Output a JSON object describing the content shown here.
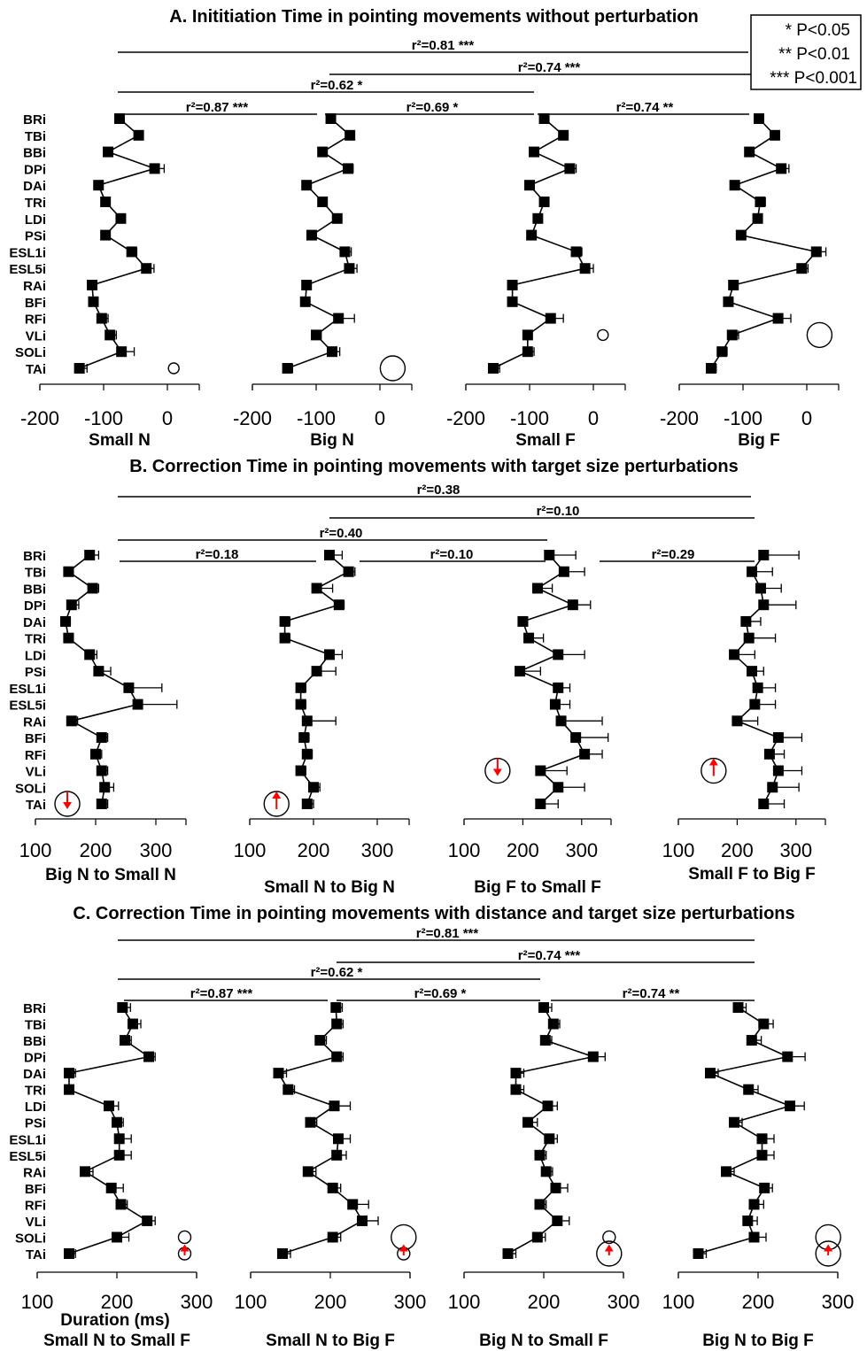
{
  "muscles": [
    "BRi",
    "TBi",
    "BBi",
    "DPi",
    "DAi",
    "TRi",
    "LDi",
    "PSi",
    "ESL1i",
    "ESL5i",
    "RAi",
    "BFi",
    "RFi",
    "VLi",
    "SOLi",
    "TAi"
  ],
  "legend": {
    "p05": "* P<0.05",
    "p01": "** P<0.01",
    "p001": "*** P<0.001"
  },
  "xaxis_label": "Duration (ms)",
  "chart_data": [
    {
      "type": "line",
      "title": "A. Inititiation Time in pointing movements without perturbation",
      "xlim": [
        -200,
        50
      ],
      "xticks": [
        -200,
        -100,
        0
      ],
      "panels": [
        {
          "name": "Small N",
          "values": [
            -75,
            -45,
            -93,
            -20,
            -108,
            -97,
            -73,
            -97,
            -56,
            -33,
            -118,
            -116,
            -103,
            -90,
            -72,
            -138
          ],
          "err": [
            5,
            4,
            4,
            15,
            6,
            5,
            6,
            4,
            8,
            12,
            7,
            5,
            10,
            10,
            20,
            12
          ],
          "circles": [
            {
              "muscle": "TAi",
              "value": 10,
              "r": 6
            }
          ],
          "arrows": []
        },
        {
          "name": "Big N",
          "values": [
            -77,
            -47,
            -90,
            -50,
            -115,
            -90,
            -67,
            -107,
            -55,
            -48,
            -115,
            -117,
            -65,
            -100,
            -75,
            -145
          ],
          "err": [
            5,
            4,
            5,
            8,
            6,
            6,
            7,
            5,
            10,
            12,
            6,
            5,
            25,
            8,
            12,
            8
          ],
          "circles": [
            {
              "muscle": "TAi",
              "value": 20,
              "r": 14
            }
          ],
          "arrows": []
        },
        {
          "name": "Small F",
          "values": [
            -77,
            -47,
            -93,
            -37,
            -100,
            -77,
            -87,
            -97,
            -27,
            -13,
            -127,
            -127,
            -67,
            -103,
            -103,
            -157
          ],
          "err": [
            5,
            4,
            4,
            10,
            5,
            7,
            6,
            4,
            9,
            13,
            5,
            4,
            20,
            6,
            10,
            10
          ],
          "circles": [
            {
              "muscle": "VLi",
              "value": 15,
              "r": 6
            }
          ],
          "arrows": []
        },
        {
          "name": "Big F",
          "values": [
            -75,
            -50,
            -90,
            -40,
            -113,
            -73,
            -77,
            -103,
            15,
            -8,
            -115,
            -123,
            -45,
            -117,
            -133,
            -150
          ],
          "err": [
            6,
            4,
            5,
            12,
            6,
            8,
            5,
            4,
            15,
            10,
            6,
            5,
            20,
            10,
            8,
            8
          ],
          "circles": [
            {
              "muscle": "VLi",
              "value": 20,
              "r": 14
            }
          ],
          "arrows": []
        }
      ],
      "brackets": [
        {
          "label": "r²=0.81 ***"
        },
        {
          "label": "r²=0.74 ***"
        },
        {
          "label": "r²=0.62 *"
        },
        {
          "label": "r²=0.87 ***"
        },
        {
          "label": "r²=0.69 *"
        },
        {
          "label": "r²=0.74 **"
        }
      ]
    },
    {
      "type": "line",
      "title": "B. Correction Time in pointing movements with target size perturbations",
      "xlim": [
        100,
        350
      ],
      "xticks": [
        100,
        200,
        300
      ],
      "panels": [
        {
          "name": "Big N to Small N",
          "values": [
            190,
            155,
            195,
            160,
            150,
            155,
            190,
            205,
            255,
            270,
            160,
            210,
            200,
            210,
            215,
            210
          ],
          "err": [
            15,
            8,
            10,
            12,
            8,
            8,
            12,
            20,
            55,
            65,
            10,
            10,
            10,
            10,
            15,
            10
          ],
          "circles": [
            {
              "muscle": "TAi",
              "value": 153,
              "r": 14
            }
          ],
          "arrows": [
            {
              "muscle": "TAi",
              "dir": "down"
            }
          ]
        },
        {
          "name": "Small N to Big N",
          "values": [
            225,
            255,
            205,
            240,
            155,
            155,
            225,
            205,
            180,
            180,
            190,
            185,
            190,
            180,
            200,
            190
          ],
          "err": [
            20,
            10,
            25,
            8,
            8,
            8,
            20,
            30,
            8,
            8,
            45,
            8,
            8,
            8,
            10,
            10
          ],
          "circles": [
            {
              "muscle": "TAi",
              "value": 142,
              "r": 14
            }
          ],
          "arrows": [
            {
              "muscle": "TAi",
              "dir": "up"
            }
          ]
        },
        {
          "name": "Big F to Small F",
          "values": [
            245,
            270,
            225,
            285,
            200,
            210,
            260,
            195,
            260,
            255,
            265,
            290,
            305,
            230,
            260,
            230
          ],
          "err": [
            45,
            35,
            25,
            30,
            8,
            25,
            45,
            35,
            20,
            25,
            70,
            55,
            30,
            45,
            45,
            30
          ],
          "circles": [
            {
              "muscle": "VLi",
              "value": 157,
              "r": 14
            }
          ],
          "arrows": [
            {
              "muscle": "VLi",
              "dir": "down"
            }
          ]
        },
        {
          "name": "Small F to Big F",
          "values": [
            245,
            225,
            240,
            245,
            215,
            220,
            195,
            225,
            235,
            230,
            200,
            270,
            255,
            270,
            260,
            245
          ],
          "err": [
            60,
            35,
            35,
            55,
            25,
            45,
            35,
            20,
            30,
            35,
            35,
            40,
            25,
            40,
            45,
            35
          ],
          "circles": [
            {
              "muscle": "VLi",
              "value": 160,
              "r": 14
            }
          ],
          "arrows": [
            {
              "muscle": "VLi",
              "dir": "up"
            }
          ]
        }
      ],
      "brackets": [
        {
          "label": "r²=0.38"
        },
        {
          "label": "r²=0.10"
        },
        {
          "label": "r²=0.40"
        },
        {
          "label": "r²=0.18"
        },
        {
          "label": "r²=0.10"
        },
        {
          "label": "r²=0.29"
        }
      ]
    },
    {
      "type": "line",
      "title": "C. Correction Time in pointing movements with distance and target size perturbations",
      "xlim": [
        100,
        300
      ],
      "xticks": [
        100,
        200,
        300
      ],
      "panels": [
        {
          "name": "Small N to Small F",
          "values": [
            207,
            220,
            210,
            240,
            140,
            140,
            190,
            200,
            203,
            203,
            160,
            193,
            205,
            238,
            200,
            140
          ],
          "err": [
            10,
            10,
            8,
            8,
            8,
            5,
            12,
            8,
            15,
            15,
            10,
            15,
            8,
            10,
            15,
            8
          ],
          "circles": [
            {
              "muscle": "SOLi",
              "value": 285,
              "r": 7
            },
            {
              "muscle": "TAi",
              "value": 285,
              "r": 7
            }
          ],
          "arrows": [
            {
              "muscle": "TAi",
              "dir": "up"
            }
          ]
        },
        {
          "name": "Small N to Big F",
          "values": [
            207,
            208,
            187,
            208,
            135,
            147,
            205,
            175,
            210,
            208,
            172,
            203,
            228,
            240,
            203,
            140
          ],
          "err": [
            8,
            8,
            8,
            8,
            10,
            8,
            20,
            8,
            15,
            12,
            10,
            10,
            20,
            20,
            10,
            10
          ],
          "circles": [
            {
              "muscle": "SOLi",
              "value": 292,
              "r": 14
            },
            {
              "muscle": "TAi",
              "value": 292,
              "r": 7
            }
          ],
          "arrows": [
            {
              "muscle": "TAi",
              "dir": "up"
            }
          ]
        },
        {
          "name": "Big N to Small F",
          "values": [
            200,
            212,
            202,
            262,
            165,
            165,
            205,
            180,
            207,
            195,
            203,
            215,
            195,
            217,
            192,
            155
          ],
          "err": [
            10,
            8,
            8,
            15,
            10,
            10,
            12,
            12,
            10,
            8,
            8,
            15,
            8,
            15,
            10,
            10
          ],
          "circles": [
            {
              "muscle": "SOLi",
              "value": 282,
              "r": 7
            },
            {
              "muscle": "TAi",
              "value": 282,
              "r": 14
            }
          ],
          "arrows": [
            {
              "muscle": "TAi",
              "dir": "up"
            }
          ]
        },
        {
          "name": "Big N to Big F",
          "values": [
            175,
            207,
            192,
            237,
            140,
            188,
            240,
            170,
            205,
            205,
            160,
            208,
            195,
            187,
            195,
            125
          ],
          "err": [
            10,
            12,
            12,
            22,
            10,
            12,
            18,
            10,
            15,
            15,
            10,
            10,
            12,
            12,
            15,
            10
          ],
          "circles": [
            {
              "muscle": "SOLi",
              "value": 288,
              "r": 14
            },
            {
              "muscle": "TAi",
              "value": 288,
              "r": 14
            }
          ],
          "arrows": [
            {
              "muscle": "TAi",
              "dir": "up"
            }
          ]
        }
      ],
      "brackets": [
        {
          "label": "r²=0.81 ***"
        },
        {
          "label": "r²=0.74 ***"
        },
        {
          "label": "r²=0.62 *"
        },
        {
          "label": "r²=0.87 ***"
        },
        {
          "label": "r²=0.69 *"
        },
        {
          "label": "r²=0.74 **"
        }
      ]
    }
  ]
}
